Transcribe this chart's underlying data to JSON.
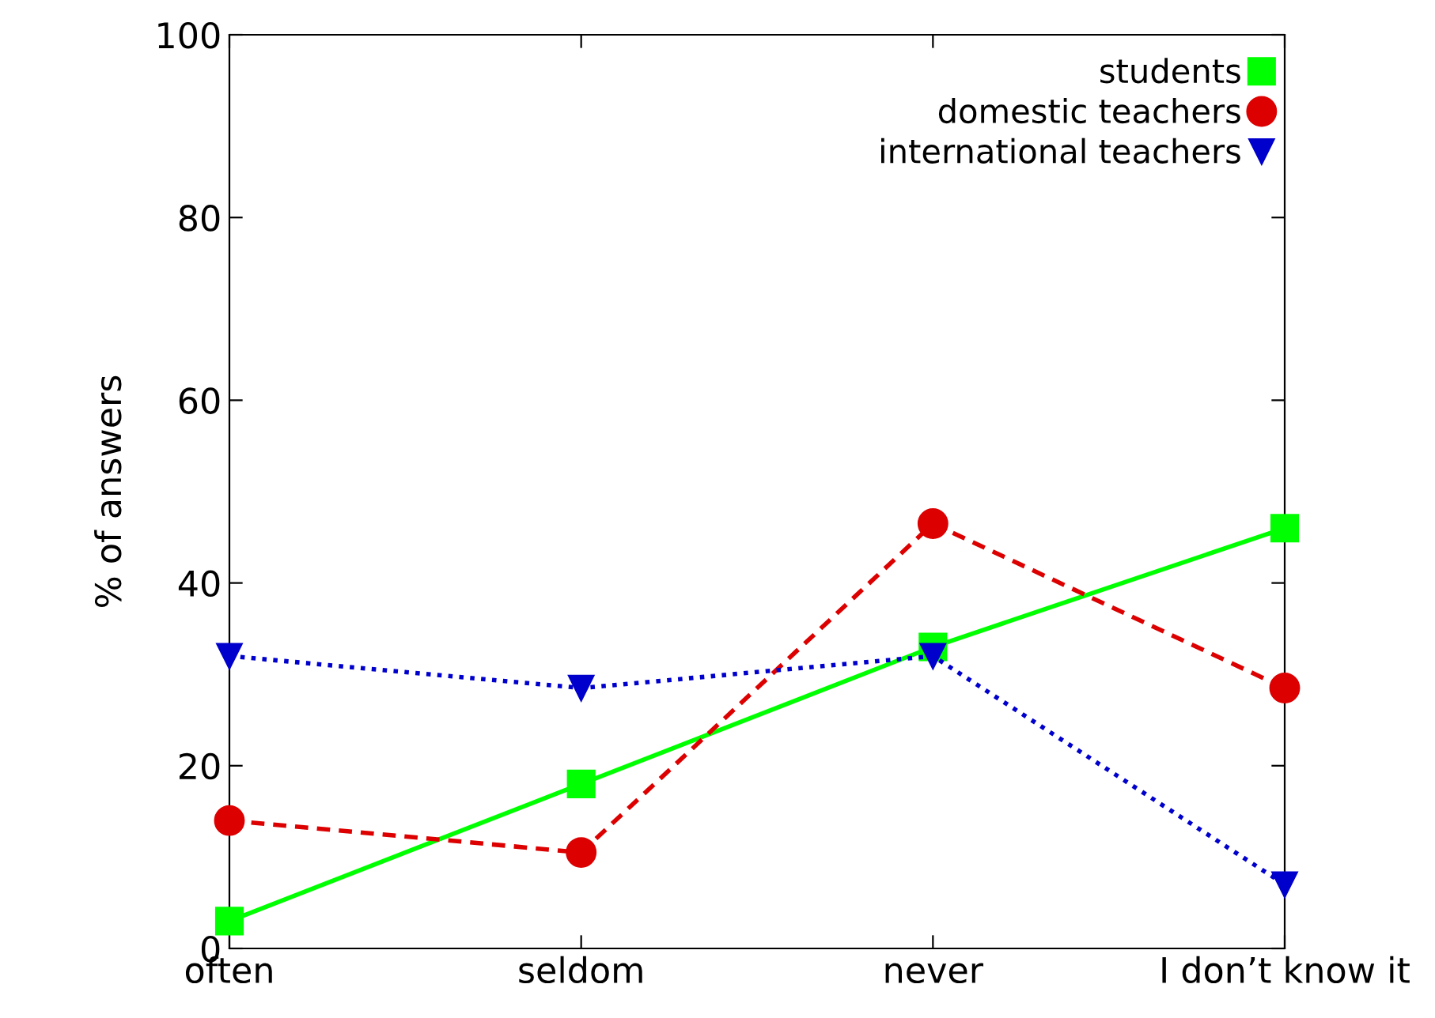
{
  "chart_data": {
    "type": "line",
    "ylabel": "% of answers",
    "categories": [
      "often",
      "seldom",
      "never",
      "I don’t know it"
    ],
    "ylim": [
      0,
      100
    ],
    "yticks": [
      0,
      20,
      40,
      60,
      80,
      100
    ],
    "grid": false,
    "legend": "top right",
    "series": [
      {
        "name": "students",
        "color": "#00ff00",
        "values": [
          3,
          18,
          33,
          46
        ],
        "marker": "square",
        "line_style": "solid"
      },
      {
        "name": "domestic teachers",
        "color": "#dd0000",
        "values": [
          14,
          10.5,
          46.5,
          28.5
        ],
        "marker": "circle",
        "line_style": "dashed"
      },
      {
        "name": "international teachers",
        "color": "#0000cc",
        "values": [
          32,
          28.5,
          32,
          7
        ],
        "marker": "triangle",
        "line_style": "dotted"
      }
    ]
  }
}
